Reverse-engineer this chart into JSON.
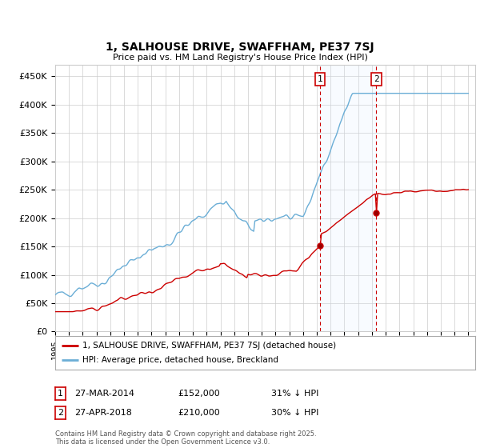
{
  "title": "1, SALHOUSE DRIVE, SWAFFHAM, PE37 7SJ",
  "subtitle": "Price paid vs. HM Land Registry's House Price Index (HPI)",
  "ytick_labels": [
    "£0",
    "£50K",
    "£100K",
    "£150K",
    "£200K",
    "£250K",
    "£300K",
    "£350K",
    "£400K",
    "£450K"
  ],
  "yticks": [
    0,
    50000,
    100000,
    150000,
    200000,
    250000,
    300000,
    350000,
    400000,
    450000
  ],
  "ylim": [
    0,
    470000
  ],
  "hpi_color": "#6baed6",
  "price_color": "#cc0000",
  "shading_color": "#ddeeff",
  "vline_color": "#cc0000",
  "year_sale1": 2014.23,
  "year_sale2": 2018.32,
  "price_sale1": 152000,
  "price_sale2": 210000,
  "sale1_label": "1",
  "sale1_date": "27-MAR-2014",
  "sale1_price": "£152,000",
  "sale1_hpi": "31% ↓ HPI",
  "sale2_label": "2",
  "sale2_date": "27-APR-2018",
  "sale2_price": "£210,000",
  "sale2_hpi": "30% ↓ HPI",
  "legend_line1": "1, SALHOUSE DRIVE, SWAFFHAM, PE37 7SJ (detached house)",
  "legend_line2": "HPI: Average price, detached house, Breckland",
  "footer": "Contains HM Land Registry data © Crown copyright and database right 2025.\nThis data is licensed under the Open Government Licence v3.0.",
  "background_color": "#ffffff",
  "grid_color": "#cccccc"
}
